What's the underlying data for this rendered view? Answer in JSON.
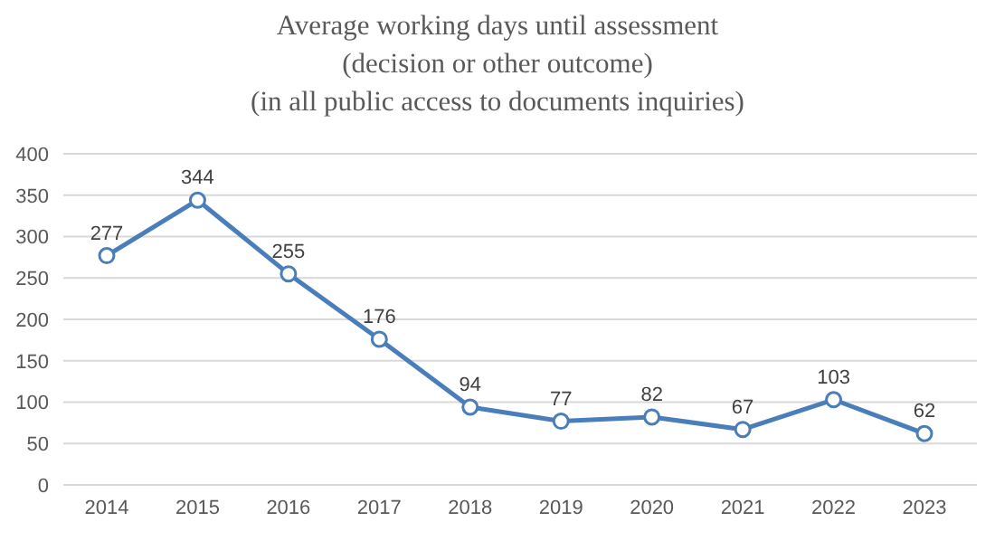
{
  "chart_data": {
    "type": "line",
    "title": "Average working days until assessment\n(decision or other outcome)\n(in all public access to documents inquiries)",
    "categories": [
      "2014",
      "2015",
      "2016",
      "2017",
      "2018",
      "2019",
      "2020",
      "2021",
      "2022",
      "2023"
    ],
    "series": [
      {
        "color": "#4a7ebb",
        "values": [
          277,
          344,
          255,
          176,
          94,
          77,
          82,
          67,
          103,
          62
        ]
      }
    ],
    "ylim": [
      0,
      400
    ],
    "yticks": [
      0,
      50,
      100,
      150,
      200,
      250,
      300,
      350,
      400
    ],
    "grid": "y",
    "legend": false,
    "marker": "circle",
    "line_style": "solid",
    "data_labels": true
  }
}
